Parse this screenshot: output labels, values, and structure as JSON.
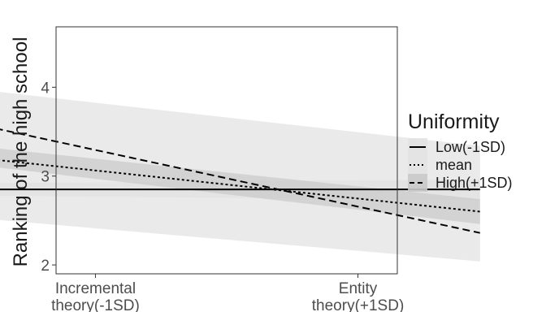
{
  "chart_data": {
    "type": "line",
    "ylabel": "Ranking of the high school",
    "xlabel": "",
    "x_tick_labels": [
      [
        "Incremental",
        "theory(-1SD)"
      ],
      [
        "Entity",
        "theory(+1SD)"
      ]
    ],
    "y_ticks": [
      2,
      3,
      4
    ],
    "ylim": [
      1.9,
      4.68
    ],
    "x": [
      -1.3,
      1.3
    ],
    "x_tick_positions": [
      -1,
      1
    ],
    "legend_title": "Uniformity",
    "legend_position": "right",
    "grid": false,
    "series": [
      {
        "name": "Low(-1SD)",
        "line_style": "solid",
        "values": [
          2.85,
          2.85
        ],
        "ci_lower": [
          2.78,
          2.73
        ],
        "ci_upper": [
          2.92,
          2.96
        ]
      },
      {
        "name": "mean",
        "line_style": "dotted",
        "values": [
          3.21,
          2.6
        ],
        "ci_lower": [
          2.53,
          2.04
        ],
        "ci_upper": [
          3.98,
          3.34
        ]
      },
      {
        "name": "High(+1SD)",
        "line_style": "dashed",
        "values": [
          3.59,
          2.36
        ],
        "ci_lower": [
          3.13,
          2.46
        ],
        "ci_upper": [
          3.34,
          2.74
        ]
      }
    ],
    "colors": {
      "line": "#000000",
      "band_light": "#e3e3e3",
      "band_dark": "#c9c9c9",
      "axis": "#333333"
    }
  }
}
